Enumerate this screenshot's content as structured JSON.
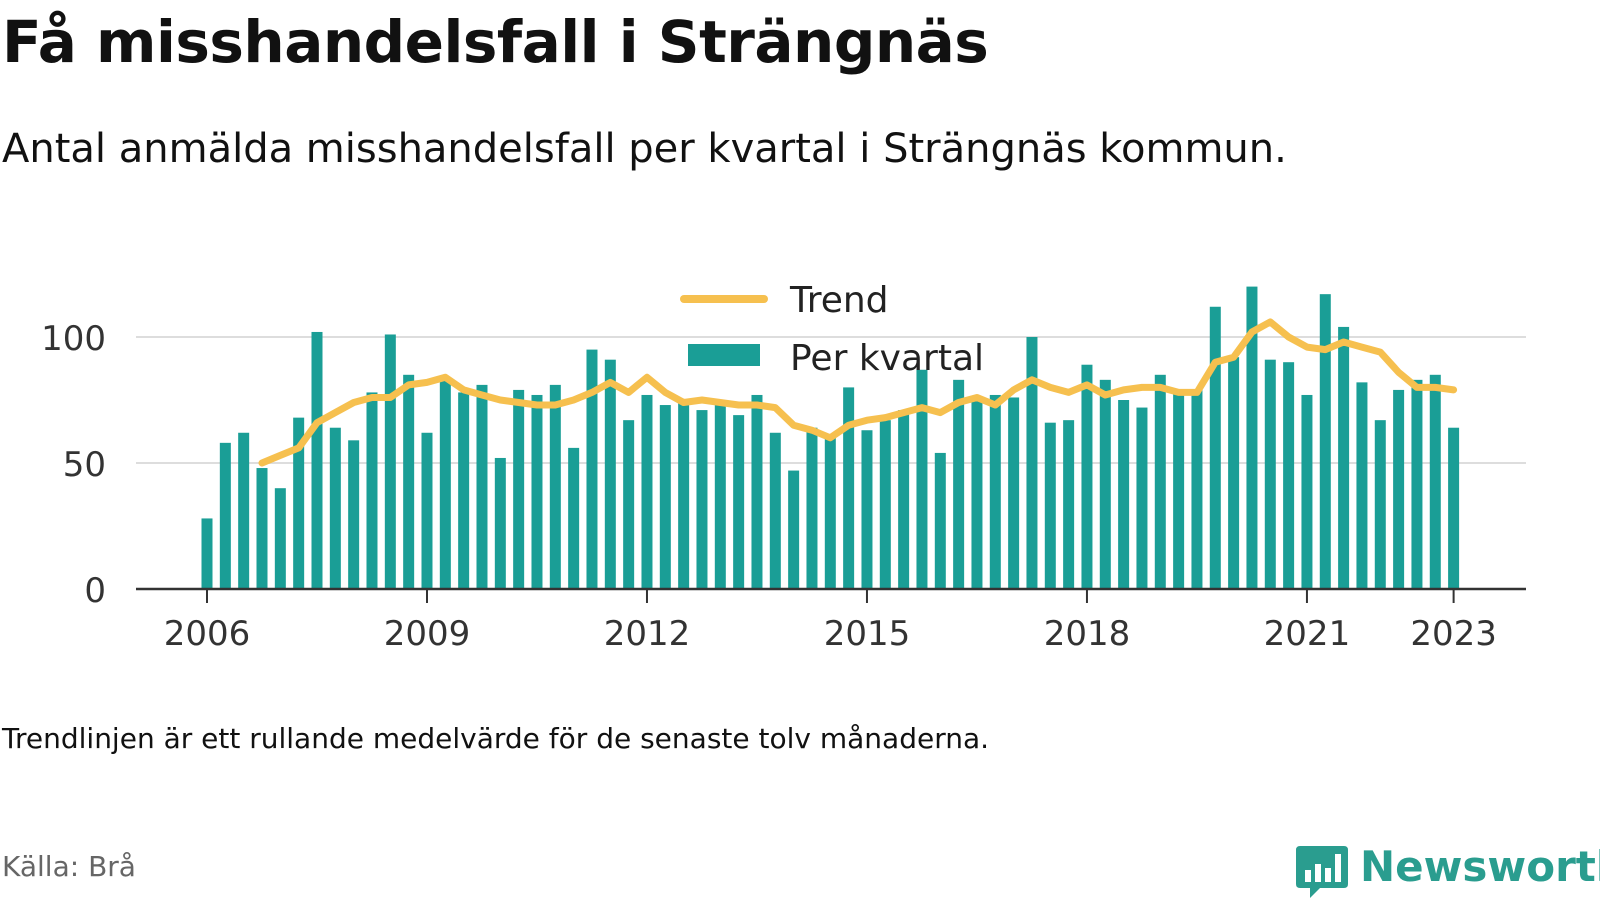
{
  "title": "Få misshandelsfall i Strängnäs",
  "subtitle": "Antal anmälda misshandelsfall per kvartal i Strängnäs kommun.",
  "footnote": "Trendlinjen är ett rullande medelvärde för de senaste tolv månaderna.",
  "source": "Källa: Brå",
  "brand": {
    "name": "Newsworthy",
    "logo_icon": "bar-chart-speech-bubble-icon"
  },
  "colors": {
    "bar": "#1a9e96",
    "trend": "#f6c04f",
    "grid": "#dddddd",
    "axis": "#333333",
    "brand": "#2a9d8f"
  },
  "chart_data": {
    "type": "bar",
    "x_unit": "year (quarters as fractional years)",
    "ylim": [
      0,
      100
    ],
    "y_ticks": [
      0,
      50,
      100
    ],
    "x_ticks": [
      2006,
      2009,
      2012,
      2015,
      2018,
      2021,
      2023
    ],
    "x_tick_labels": [
      "2006",
      "2009",
      "2012",
      "2015",
      "2018",
      "2021",
      "2023"
    ],
    "grid": true,
    "legend_position": "top-center",
    "series": [
      {
        "name": "Per kvartal",
        "type": "bar",
        "x": [
          2006.0,
          2006.25,
          2006.5,
          2006.75,
          2007.0,
          2007.25,
          2007.5,
          2007.75,
          2008.0,
          2008.25,
          2008.5,
          2008.75,
          2009.0,
          2009.25,
          2009.5,
          2009.75,
          2010.0,
          2010.25,
          2010.5,
          2010.75,
          2011.0,
          2011.25,
          2011.5,
          2011.75,
          2012.0,
          2012.25,
          2012.5,
          2012.75,
          2013.0,
          2013.25,
          2013.5,
          2013.75,
          2014.0,
          2014.25,
          2014.5,
          2014.75,
          2015.0,
          2015.25,
          2015.5,
          2015.75,
          2016.0,
          2016.25,
          2016.5,
          2016.75,
          2017.0,
          2017.25,
          2017.5,
          2017.75,
          2018.0,
          2018.25,
          2018.5,
          2018.75,
          2019.0,
          2019.25,
          2019.5,
          2019.75,
          2020.0,
          2020.25,
          2020.5,
          2020.75,
          2021.0,
          2021.25,
          2021.5,
          2021.75,
          2022.0,
          2022.25,
          2022.5,
          2022.75,
          2023.0
        ],
        "values": [
          28,
          58,
          62,
          48,
          40,
          68,
          102,
          64,
          59,
          78,
          101,
          85,
          62,
          84,
          78,
          81,
          52,
          79,
          77,
          81,
          56,
          95,
          91,
          67,
          77,
          73,
          74,
          71,
          73,
          69,
          77,
          62,
          47,
          64,
          60,
          80,
          63,
          67,
          71,
          87,
          54,
          83,
          75,
          77,
          76,
          100,
          66,
          67,
          89,
          83,
          75,
          72,
          85,
          78,
          79,
          112,
          92,
          120,
          91,
          90,
          77,
          117,
          104,
          82,
          67,
          79,
          83,
          85,
          64
        ]
      },
      {
        "name": "Trend",
        "type": "line",
        "x": [
          2006.75,
          2007.0,
          2007.25,
          2007.5,
          2007.75,
          2008.0,
          2008.25,
          2008.5,
          2008.75,
          2009.0,
          2009.25,
          2009.5,
          2009.75,
          2010.0,
          2010.25,
          2010.5,
          2010.75,
          2011.0,
          2011.25,
          2011.5,
          2011.75,
          2012.0,
          2012.25,
          2012.5,
          2012.75,
          2013.0,
          2013.25,
          2013.5,
          2013.75,
          2014.0,
          2014.25,
          2014.5,
          2014.75,
          2015.0,
          2015.25,
          2015.5,
          2015.75,
          2016.0,
          2016.25,
          2016.5,
          2016.75,
          2017.0,
          2017.25,
          2017.5,
          2017.75,
          2018.0,
          2018.25,
          2018.5,
          2018.75,
          2019.0,
          2019.25,
          2019.5,
          2019.75,
          2020.0,
          2020.25,
          2020.5,
          2020.75,
          2021.0,
          2021.25,
          2021.5,
          2021.75,
          2022.0,
          2022.25,
          2022.5,
          2022.75,
          2023.0
        ],
        "values": [
          50,
          53,
          56,
          66,
          70,
          74,
          76,
          76,
          81,
          82,
          84,
          79,
          77,
          75,
          74,
          73,
          73,
          75,
          78,
          82,
          78,
          84,
          78,
          74,
          75,
          74,
          73,
          73,
          72,
          65,
          63,
          60,
          65,
          67,
          68,
          70,
          72,
          70,
          74,
          76,
          73,
          79,
          83,
          80,
          78,
          81,
          77,
          79,
          80,
          80,
          78,
          78,
          90,
          92,
          102,
          106,
          100,
          96,
          95,
          98,
          96,
          94,
          86,
          80,
          80,
          79
        ]
      }
    ]
  }
}
